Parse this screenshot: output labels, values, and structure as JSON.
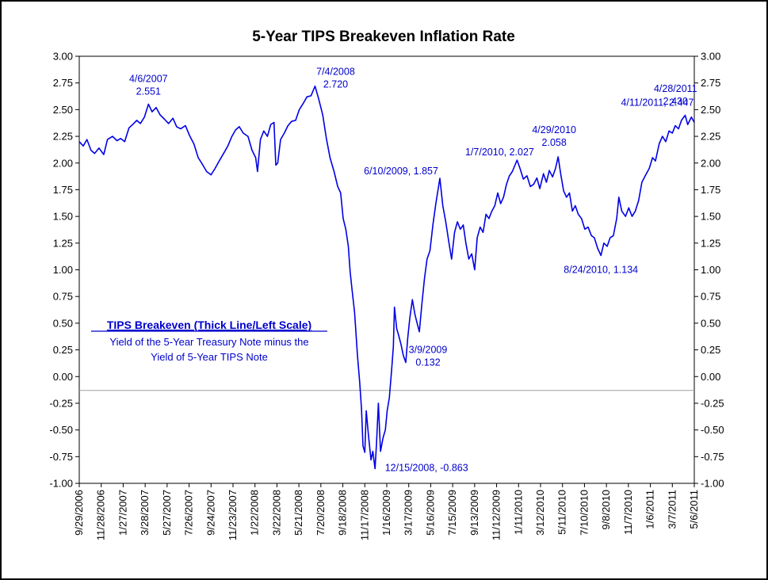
{
  "chart_data": {
    "type": "line",
    "title": "5-Year TIPS Breakeven Inflation Rate",
    "ylim": [
      -1.0,
      3.0
    ],
    "y_ticks": [
      "3.00",
      "2.75",
      "2.50",
      "2.25",
      "2.00",
      "1.75",
      "1.50",
      "1.25",
      "1.00",
      "0.75",
      "0.50",
      "0.25",
      "0.00",
      "-0.25",
      "-0.50",
      "-0.75",
      "-1.00"
    ],
    "x_range": [
      "2006-09-29",
      "2011-05-06"
    ],
    "x_tick_labels": [
      "9/29/2006",
      "11/28/2006",
      "1/27/2007",
      "3/28/2007",
      "5/27/2007",
      "7/26/2007",
      "9/24/2007",
      "11/23/2007",
      "1/22/2008",
      "3/22/2008",
      "5/21/2008",
      "7/20/2008",
      "9/18/2008",
      "11/17/2008",
      "1/16/2009",
      "3/17/2009",
      "5/16/2009",
      "7/15/2009",
      "9/13/2009",
      "11/12/2009",
      "1/11/2010",
      "3/12/2010",
      "5/11/2010",
      "7/10/2010",
      "9/8/2010",
      "11/7/2010",
      "1/6/2011",
      "3/7/2011",
      "5/6/2011"
    ],
    "reference_line_y": -0.13,
    "series": [
      {
        "name": "TIPS Breakeven",
        "color": "#0000e6",
        "points": [
          [
            "2006-09-29",
            2.2
          ],
          [
            "2006-10-10",
            2.16
          ],
          [
            "2006-10-20",
            2.22
          ],
          [
            "2006-10-31",
            2.12
          ],
          [
            "2006-11-10",
            2.09
          ],
          [
            "2006-11-22",
            2.14
          ],
          [
            "2006-12-05",
            2.08
          ],
          [
            "2006-12-15",
            2.22
          ],
          [
            "2006-12-29",
            2.25
          ],
          [
            "2007-01-10",
            2.21
          ],
          [
            "2007-01-20",
            2.23
          ],
          [
            "2007-01-31",
            2.2
          ],
          [
            "2007-02-12",
            2.33
          ],
          [
            "2007-02-22",
            2.36
          ],
          [
            "2007-03-05",
            2.4
          ],
          [
            "2007-03-15",
            2.37
          ],
          [
            "2007-03-26",
            2.43
          ],
          [
            "2007-04-06",
            2.551
          ],
          [
            "2007-04-16",
            2.48
          ],
          [
            "2007-04-27",
            2.52
          ],
          [
            "2007-05-08",
            2.45
          ],
          [
            "2007-05-20",
            2.41
          ],
          [
            "2007-05-31",
            2.37
          ],
          [
            "2007-06-12",
            2.42
          ],
          [
            "2007-06-22",
            2.34
          ],
          [
            "2007-07-03",
            2.32
          ],
          [
            "2007-07-16",
            2.35
          ],
          [
            "2007-07-27",
            2.26
          ],
          [
            "2007-08-08",
            2.18
          ],
          [
            "2007-08-20",
            2.05
          ],
          [
            "2007-08-31",
            1.99
          ],
          [
            "2007-09-12",
            1.92
          ],
          [
            "2007-09-24",
            1.89
          ],
          [
            "2007-10-05",
            1.95
          ],
          [
            "2007-10-18",
            2.03
          ],
          [
            "2007-10-30",
            2.1
          ],
          [
            "2007-11-09",
            2.16
          ],
          [
            "2007-11-20",
            2.25
          ],
          [
            "2007-11-30",
            2.31
          ],
          [
            "2007-12-10",
            2.34
          ],
          [
            "2007-12-21",
            2.28
          ],
          [
            "2008-01-03",
            2.25
          ],
          [
            "2008-01-14",
            2.12
          ],
          [
            "2008-01-24",
            2.05
          ],
          [
            "2008-01-29",
            1.92
          ],
          [
            "2008-02-06",
            2.22
          ],
          [
            "2008-02-15",
            2.3
          ],
          [
            "2008-02-25",
            2.25
          ],
          [
            "2008-03-05",
            2.36
          ],
          [
            "2008-03-14",
            2.38
          ],
          [
            "2008-03-19",
            1.98
          ],
          [
            "2008-03-24",
            2.0
          ],
          [
            "2008-04-01",
            2.22
          ],
          [
            "2008-04-11",
            2.28
          ],
          [
            "2008-04-21",
            2.35
          ],
          [
            "2008-05-01",
            2.39
          ],
          [
            "2008-05-12",
            2.4
          ],
          [
            "2008-05-22",
            2.5
          ],
          [
            "2008-06-02",
            2.56
          ],
          [
            "2008-06-12",
            2.62
          ],
          [
            "2008-06-23",
            2.63
          ],
          [
            "2008-07-04",
            2.72
          ],
          [
            "2008-07-14",
            2.6
          ],
          [
            "2008-07-25",
            2.45
          ],
          [
            "2008-08-04",
            2.23
          ],
          [
            "2008-08-14",
            2.05
          ],
          [
            "2008-08-25",
            1.92
          ],
          [
            "2008-09-04",
            1.78
          ],
          [
            "2008-09-12",
            1.72
          ],
          [
            "2008-09-19",
            1.48
          ],
          [
            "2008-09-26",
            1.38
          ],
          [
            "2008-10-03",
            1.22
          ],
          [
            "2008-10-08",
            0.98
          ],
          [
            "2008-10-13",
            0.82
          ],
          [
            "2008-10-20",
            0.6
          ],
          [
            "2008-10-28",
            0.2
          ],
          [
            "2008-11-03",
            -0.05
          ],
          [
            "2008-11-08",
            -0.3
          ],
          [
            "2008-11-12",
            -0.65
          ],
          [
            "2008-11-17",
            -0.71
          ],
          [
            "2008-11-21",
            -0.32
          ],
          [
            "2008-11-27",
            -0.55
          ],
          [
            "2008-12-04",
            -0.78
          ],
          [
            "2008-12-09",
            -0.7
          ],
          [
            "2008-12-15",
            -0.863
          ],
          [
            "2008-12-19",
            -0.62
          ],
          [
            "2008-12-24",
            -0.25
          ],
          [
            "2008-12-30",
            -0.7
          ],
          [
            "2009-01-06",
            -0.57
          ],
          [
            "2009-01-12",
            -0.5
          ],
          [
            "2009-01-17",
            -0.32
          ],
          [
            "2009-01-23",
            -0.2
          ],
          [
            "2009-01-29",
            0.05
          ],
          [
            "2009-02-03",
            0.28
          ],
          [
            "2009-02-06",
            0.65
          ],
          [
            "2009-02-12",
            0.45
          ],
          [
            "2009-02-18",
            0.38
          ],
          [
            "2009-02-24",
            0.3
          ],
          [
            "2009-03-02",
            0.2
          ],
          [
            "2009-03-09",
            0.132
          ],
          [
            "2009-03-14",
            0.35
          ],
          [
            "2009-03-20",
            0.55
          ],
          [
            "2009-03-27",
            0.72
          ],
          [
            "2009-04-03",
            0.58
          ],
          [
            "2009-04-09",
            0.5
          ],
          [
            "2009-04-15",
            0.42
          ],
          [
            "2009-04-22",
            0.68
          ],
          [
            "2009-04-29",
            0.92
          ],
          [
            "2009-05-06",
            1.1
          ],
          [
            "2009-05-14",
            1.18
          ],
          [
            "2009-05-22",
            1.42
          ],
          [
            "2009-05-30",
            1.62
          ],
          [
            "2009-06-10",
            1.857
          ],
          [
            "2009-06-18",
            1.6
          ],
          [
            "2009-06-26",
            1.45
          ],
          [
            "2009-07-05",
            1.25
          ],
          [
            "2009-07-12",
            1.1
          ],
          [
            "2009-07-20",
            1.35
          ],
          [
            "2009-07-28",
            1.45
          ],
          [
            "2009-08-05",
            1.38
          ],
          [
            "2009-08-13",
            1.42
          ],
          [
            "2009-08-20",
            1.25
          ],
          [
            "2009-08-28",
            1.1
          ],
          [
            "2009-09-05",
            1.15
          ],
          [
            "2009-09-13",
            1.0
          ],
          [
            "2009-09-20",
            1.3
          ],
          [
            "2009-09-28",
            1.4
          ],
          [
            "2009-10-06",
            1.35
          ],
          [
            "2009-10-14",
            1.52
          ],
          [
            "2009-10-22",
            1.48
          ],
          [
            "2009-10-30",
            1.55
          ],
          [
            "2009-11-07",
            1.6
          ],
          [
            "2009-11-15",
            1.72
          ],
          [
            "2009-11-23",
            1.62
          ],
          [
            "2009-12-01",
            1.68
          ],
          [
            "2009-12-09",
            1.8
          ],
          [
            "2009-12-17",
            1.88
          ],
          [
            "2009-12-25",
            1.92
          ],
          [
            "2010-01-07",
            2.027
          ],
          [
            "2010-01-15",
            1.95
          ],
          [
            "2010-01-24",
            1.85
          ],
          [
            "2010-02-03",
            1.88
          ],
          [
            "2010-02-12",
            1.78
          ],
          [
            "2010-02-21",
            1.8
          ],
          [
            "2010-03-02",
            1.86
          ],
          [
            "2010-03-10",
            1.76
          ],
          [
            "2010-03-20",
            1.9
          ],
          [
            "2010-03-28",
            1.82
          ],
          [
            "2010-04-05",
            1.93
          ],
          [
            "2010-04-14",
            1.87
          ],
          [
            "2010-04-22",
            1.95
          ],
          [
            "2010-04-29",
            2.058
          ],
          [
            "2010-05-06",
            1.9
          ],
          [
            "2010-05-14",
            1.74
          ],
          [
            "2010-05-22",
            1.68
          ],
          [
            "2010-05-30",
            1.72
          ],
          [
            "2010-06-07",
            1.55
          ],
          [
            "2010-06-15",
            1.6
          ],
          [
            "2010-06-23",
            1.52
          ],
          [
            "2010-07-02",
            1.48
          ],
          [
            "2010-07-11",
            1.38
          ],
          [
            "2010-07-20",
            1.4
          ],
          [
            "2010-07-29",
            1.32
          ],
          [
            "2010-08-06",
            1.3
          ],
          [
            "2010-08-15",
            1.2
          ],
          [
            "2010-08-24",
            1.134
          ],
          [
            "2010-09-01",
            1.25
          ],
          [
            "2010-09-10",
            1.22
          ],
          [
            "2010-09-18",
            1.3
          ],
          [
            "2010-09-27",
            1.32
          ],
          [
            "2010-10-06",
            1.48
          ],
          [
            "2010-10-12",
            1.68
          ],
          [
            "2010-10-20",
            1.55
          ],
          [
            "2010-10-30",
            1.5
          ],
          [
            "2010-11-08",
            1.58
          ],
          [
            "2010-11-17",
            1.5
          ],
          [
            "2010-11-26",
            1.55
          ],
          [
            "2010-12-05",
            1.65
          ],
          [
            "2010-12-14",
            1.82
          ],
          [
            "2010-12-23",
            1.88
          ],
          [
            "2011-01-03",
            1.95
          ],
          [
            "2011-01-12",
            2.05
          ],
          [
            "2011-01-20",
            2.02
          ],
          [
            "2011-01-30",
            2.18
          ],
          [
            "2011-02-08",
            2.25
          ],
          [
            "2011-02-17",
            2.2
          ],
          [
            "2011-02-26",
            2.3
          ],
          [
            "2011-03-07",
            2.28
          ],
          [
            "2011-03-15",
            2.35
          ],
          [
            "2011-03-24",
            2.32
          ],
          [
            "2011-04-01",
            2.4
          ],
          [
            "2011-04-11",
            2.447
          ],
          [
            "2011-04-18",
            2.36
          ],
          [
            "2011-04-28",
            2.43
          ],
          [
            "2011-05-06",
            2.38
          ]
        ]
      }
    ],
    "annotations": [
      {
        "line1": "4/6/2007",
        "line2": "2.551",
        "x": "2007-04-06",
        "y": 2.551
      },
      {
        "line1": "7/4/2008",
        "line2": "2.720",
        "x": "2008-07-04",
        "y": 2.72
      },
      {
        "line1": "6/10/2009, 1.857",
        "line2": "",
        "x": "2009-06-10",
        "y": 1.857
      },
      {
        "line1": "1/7/2010, 2.027",
        "line2": "",
        "x": "2010-01-07",
        "y": 2.027
      },
      {
        "line1": "4/29/2010",
        "line2": "2.058",
        "x": "2010-04-29",
        "y": 2.058
      },
      {
        "line1": "4/11/2011, 2.447",
        "line2": "",
        "x": "2011-04-11",
        "y": 2.447
      },
      {
        "line1": "4/28/2011",
        "line2": "2.430",
        "x": "2011-04-28",
        "y": 2.43
      },
      {
        "line1": "3/9/2009",
        "line2": "0.132",
        "x": "2009-03-09",
        "y": 0.132
      },
      {
        "line1": "12/15/2008, -0.863",
        "line2": "",
        "x": "2008-12-15",
        "y": -0.863
      },
      {
        "line1": "8/24/2010, 1.134",
        "line2": "",
        "x": "2010-08-24",
        "y": 1.134
      }
    ],
    "legend": {
      "title": "TIPS Breakeven (Thick Line/Left Scale)",
      "desc1": "Yield of the 5-Year Treasury Note minus the",
      "desc2": "Yield of 5-Year TIPS Note"
    }
  }
}
